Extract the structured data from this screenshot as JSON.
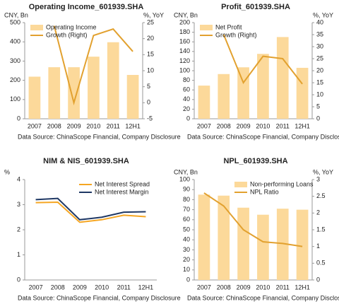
{
  "chart_data": [
    {
      "type": "combo",
      "title": "Operating Income_601939.SHA",
      "y_label": "CNY, Bn",
      "y2_label": "%, YoY",
      "categories": [
        "2007",
        "2008",
        "2009",
        "2010",
        "2011",
        "12H1"
      ],
      "series": [
        {
          "name": "Operating Income",
          "type": "bar",
          "color": "#fcd99a",
          "values": [
            219,
            268,
            268,
            323,
            398,
            228
          ]
        },
        {
          "name": "Growth (Right)",
          "type": "line",
          "axis": "y2",
          "color": "#e2a12f",
          "values": [
            null,
            24,
            0,
            21,
            23,
            16
          ]
        }
      ],
      "ylim": [
        0,
        500
      ],
      "yticks": [
        0,
        100,
        200,
        300,
        400,
        500
      ],
      "y2lim": [
        -5,
        25
      ],
      "y2ticks": [
        -5,
        0,
        5,
        10,
        15,
        20,
        25
      ],
      "legend": "upper left",
      "grid": false,
      "source": "Data Source: ChinaScope Financial,  Company Disclosure"
    },
    {
      "type": "combo",
      "title": "Profit_601939.SHA",
      "y_label": "CNY, Bn",
      "y2_label": "%, YoY",
      "categories": [
        "2007",
        "2008",
        "2009",
        "2010",
        "2011",
        "12H1"
      ],
      "series": [
        {
          "name": "Net Profit",
          "type": "bar",
          "color": "#fcd99a",
          "values": [
            69,
            93,
            107,
            135,
            170,
            106
          ]
        },
        {
          "name": "Growth (Right)",
          "type": "line",
          "axis": "y2",
          "color": "#e2a12f",
          "values": [
            null,
            35,
            15,
            26,
            25,
            14.5
          ]
        }
      ],
      "ylim": [
        0,
        200
      ],
      "yticks": [
        0,
        20,
        40,
        60,
        80,
        100,
        120,
        140,
        160,
        180,
        200
      ],
      "y2lim": [
        0,
        40
      ],
      "y2ticks": [
        0,
        5,
        10,
        15,
        20,
        25,
        30,
        35,
        40
      ],
      "legend": "upper left",
      "grid": false,
      "source": "Data Source: ChinaScope Financial,  Company Disclosure"
    },
    {
      "type": "line",
      "title": "NIM & NIS_601939.SHA",
      "y_label": "%",
      "categories": [
        "2007",
        "2008",
        "2009",
        "2010",
        "2011",
        "12H1"
      ],
      "series": [
        {
          "name": "Net Interest Spread",
          "type": "line",
          "color": "#f5a623",
          "values": [
            3.08,
            3.1,
            2.3,
            2.4,
            2.58,
            2.52
          ]
        },
        {
          "name": "Net Interest Margin",
          "type": "line",
          "color": "#1f3864",
          "values": [
            3.2,
            3.25,
            2.4,
            2.5,
            2.7,
            2.72
          ]
        }
      ],
      "ylim": [
        0,
        4
      ],
      "yticks": [
        0,
        1,
        2,
        3,
        4
      ],
      "legend": "upper right",
      "grid": false,
      "source": "Data Source: ChinaScope Financial,  Company Disclosure"
    },
    {
      "type": "combo",
      "title": "NPL_601939.SHA",
      "y_label": "CNY, Bn",
      "y2_label": "%, YoY",
      "categories": [
        "2007",
        "2008",
        "2009",
        "2010",
        "2011",
        "12H1"
      ],
      "series": [
        {
          "name": "Non-performing Loans",
          "type": "bar",
          "color": "#fcd99a",
          "values": [
            85,
            84,
            72,
            65,
            71,
            70
          ]
        },
        {
          "name": "NPL Ratio",
          "type": "line",
          "axis": "y2",
          "color": "#e2a12f",
          "values": [
            2.6,
            2.21,
            1.5,
            1.14,
            1.09,
            1.0
          ]
        }
      ],
      "ylim": [
        0,
        100
      ],
      "yticks": [
        0,
        10,
        20,
        30,
        40,
        50,
        60,
        70,
        80,
        90,
        100
      ],
      "y2lim": [
        0,
        3
      ],
      "y2ticks": [
        0,
        0.5,
        1,
        1.5,
        2,
        2.5,
        3
      ],
      "legend": "upper right",
      "grid": false,
      "source": "Data Source: ChinaScope Financial,  Company Disclosure"
    }
  ]
}
